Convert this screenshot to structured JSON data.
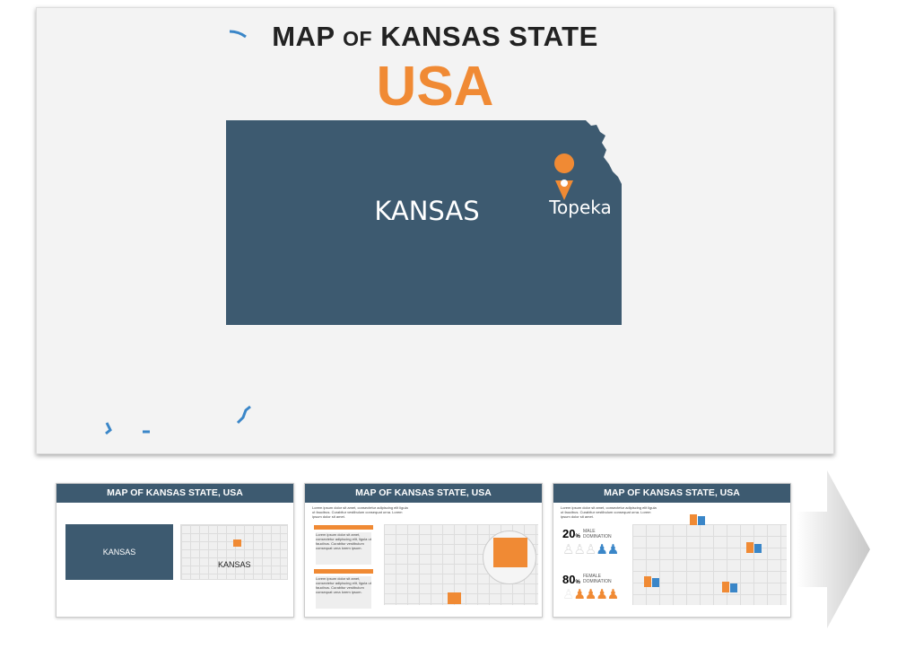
{
  "main_slide": {
    "title_part1": "MAP ",
    "title_of": "OF",
    "title_part2": " KANSAS STATE",
    "subtitle": "USA",
    "state_label": "KANSAS",
    "capital_label": "Topeka",
    "state_color": "#3d5a70",
    "accent_color": "#f08a34",
    "pin_icon": "map-pin-icon"
  },
  "thumbnails": [
    {
      "title": "MAP OF KANSAS STATE, USA",
      "state_label": "KANSAS",
      "map_label": "KANSAS"
    },
    {
      "title": "MAP OF KANSAS STATE, USA",
      "intro": "Lorem ipsum dolor sit amet, consectetur adipiscing elit ligula ut faucibus. Curabitur vestibulum consequat urna. Lorem ipsum dolor sit amet.",
      "box_text": "Lorem ipsum dolor sit amet, consectetur adipiscing elit, ligula ut faucibus. Curabitur vestibulum consequat urna lorem ipsum."
    },
    {
      "title": "MAP OF KANSAS STATE, USA",
      "intro": "Lorem ipsum dolor sit amet, consectetur adipiscing elit ligula ut faucibus. Curabitur vestibulum consequat urna. Lorem ipsum dolor sit amet.",
      "male_pct": "20",
      "male_label": "MALE DOMINATION",
      "female_pct": "80",
      "female_label": "FEMALE DOMINATION",
      "pct_sign": "%"
    }
  ],
  "male_color": "#3a86c8",
  "female_color": "#f08a34"
}
